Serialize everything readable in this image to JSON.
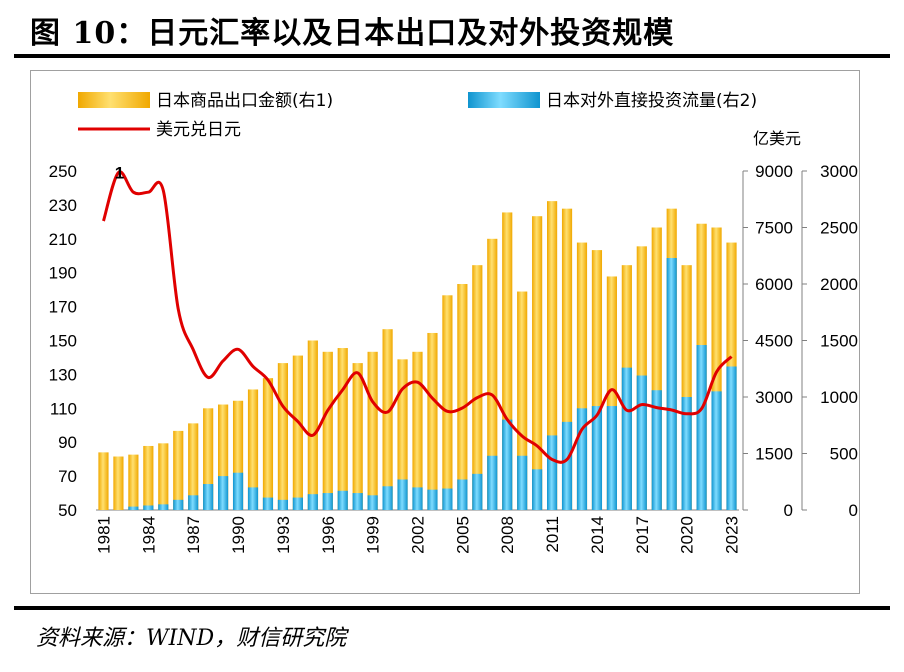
{
  "header": {
    "title": "图 10：日元汇率以及日本出口及对外投资规模"
  },
  "footer": {
    "source": "资料来源：WIND，财信研究院"
  },
  "chart_data": {
    "type": "bar",
    "unit_label": "亿美元",
    "legend": [
      "日本商品出口金额(右1)",
      "日本对外直接投资流量(右2)",
      "美元兑日元"
    ],
    "series": [
      {
        "name": "日本商品出口金额(右1)",
        "axis": "right1",
        "color": "#f5b800",
        "values": [
          1530,
          1420,
          1470,
          1700,
          1770,
          2100,
          2300,
          2700,
          2800,
          2900,
          3200,
          3500,
          3900,
          4100,
          4500,
          4200,
          4300,
          3900,
          4200,
          4800,
          4000,
          4200,
          4700,
          5700,
          6000,
          6500,
          7200,
          7900,
          5800,
          7800,
          8200,
          8000,
          7100,
          6900,
          6200,
          6500,
          7000,
          7500,
          8000,
          6500,
          7600,
          7500,
          7100
        ]
      },
      {
        "name": "日本对外直接投资流量(右2)",
        "axis": "right2",
        "color": "#18a8e0",
        "values": [
          0,
          0,
          30,
          40,
          50,
          90,
          130,
          230,
          300,
          330,
          200,
          110,
          90,
          110,
          140,
          150,
          170,
          150,
          130,
          210,
          270,
          200,
          180,
          190,
          270,
          320,
          480,
          800,
          480,
          360,
          660,
          780,
          900,
          920,
          920,
          1260,
          1190,
          1060,
          2230,
          1000,
          1460,
          1050,
          1270
        ]
      },
      {
        "name": "美元兑日元",
        "axis": "left",
        "color": "#e00000",
        "values": [
          220.5,
          249.1,
          237.5,
          237.5,
          238.5,
          168.5,
          144.6,
          128.2,
          138.0,
          144.8,
          134.7,
          126.7,
          111.2,
          102.2,
          94.1,
          108.8,
          121.0,
          130.9,
          113.9,
          107.8,
          121.5,
          125.4,
          115.9,
          108.2,
          110.2,
          116.3,
          117.8,
          103.4,
          93.6,
          87.8,
          79.8,
          79.8,
          97.6,
          105.9,
          121.0,
          108.8,
          112.2,
          110.4,
          109.0,
          106.8,
          109.8,
          131.5,
          140.5
        ]
      }
    ],
    "x_years": [
      1981,
      1982,
      1983,
      1984,
      1985,
      1986,
      1987,
      1988,
      1989,
      1990,
      1991,
      1992,
      1993,
      1994,
      1995,
      1996,
      1997,
      1998,
      1999,
      2000,
      2001,
      2002,
      2003,
      2004,
      2005,
      2006,
      2007,
      2008,
      2009,
      2010,
      2011,
      2012,
      2013,
      2014,
      2015,
      2016,
      2017,
      2018,
      2019,
      2020,
      2021,
      2022,
      2023
    ],
    "x_tick_labels": [
      "1981",
      "1984",
      "1987",
      "1990",
      "1993",
      "1996",
      "1999",
      "2002",
      "2005",
      "2008",
      "2011",
      "2014",
      "2017",
      "2020",
      "2023"
    ],
    "y_left": {
      "min": 50,
      "max": 250,
      "ticks": [
        "250",
        "230",
        "210",
        "190",
        "170",
        "150",
        "130",
        "110",
        "90",
        "70",
        "50"
      ]
    },
    "y_right1": {
      "min": 0,
      "max": 9000,
      "ticks": [
        "9000",
        "7500",
        "6000",
        "4500",
        "3000",
        "1500",
        "0"
      ]
    },
    "y_right2": {
      "min": 0,
      "max": 3000,
      "ticks": [
        "3000",
        "2500",
        "2000",
        "1500",
        "1000",
        "500",
        "0"
      ]
    },
    "annotations": [
      {
        "text": "1"
      }
    ]
  }
}
